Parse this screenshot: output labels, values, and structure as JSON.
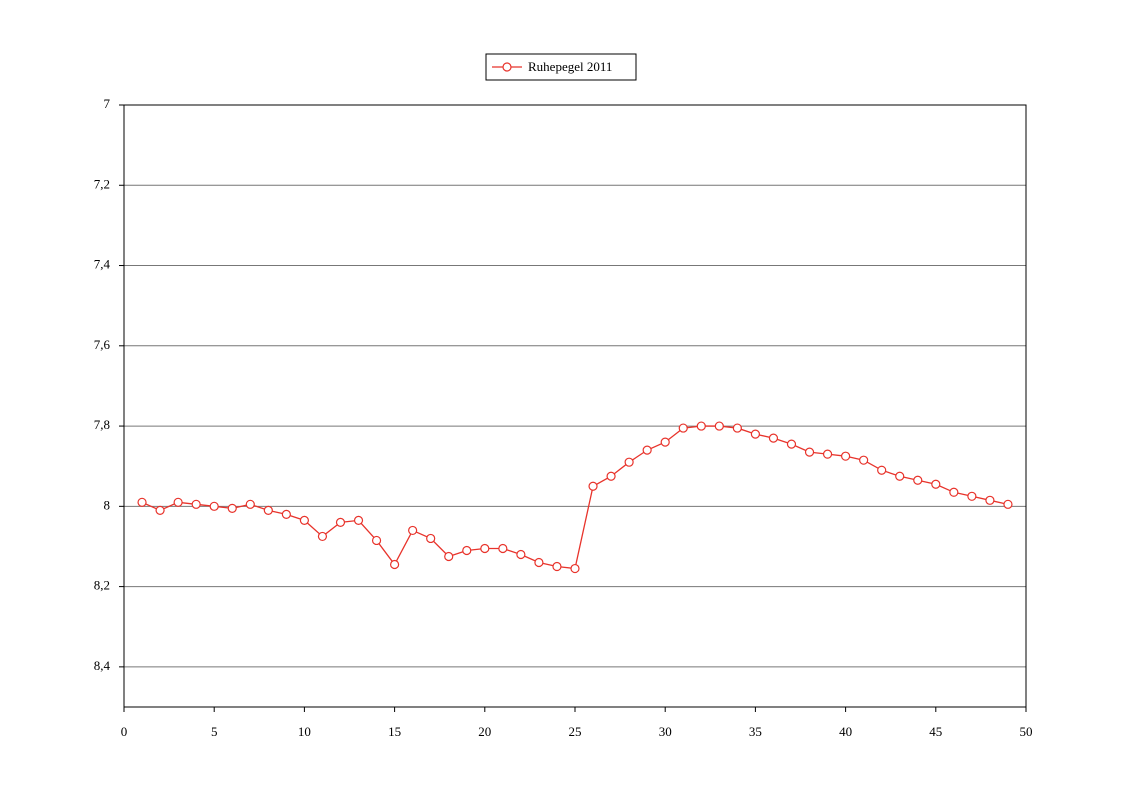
{
  "chart_data": {
    "type": "line",
    "x": [
      1,
      2,
      3,
      4,
      5,
      6,
      7,
      8,
      9,
      10,
      11,
      12,
      13,
      14,
      15,
      16,
      17,
      18,
      19,
      20,
      21,
      22,
      23,
      24,
      25,
      26,
      27,
      28,
      29,
      30,
      31,
      32,
      33,
      34,
      35,
      36,
      37,
      38,
      39,
      40,
      41,
      42,
      43,
      44,
      45,
      46,
      47,
      48,
      49
    ],
    "series": [
      {
        "name": "Ruhepegel 2011",
        "color": "#e8332b",
        "values": [
          7.99,
          8.01,
          7.99,
          7.995,
          8.0,
          8.005,
          7.995,
          8.01,
          8.02,
          8.035,
          8.075,
          8.04,
          8.035,
          8.085,
          8.145,
          8.06,
          8.08,
          8.125,
          8.11,
          8.105,
          8.105,
          8.12,
          8.14,
          8.15,
          8.155,
          7.95,
          7.925,
          7.89,
          7.86,
          7.84,
          7.805,
          7.8,
          7.8,
          7.805,
          7.82,
          7.83,
          7.845,
          7.865,
          7.87,
          7.875,
          7.885,
          7.91,
          7.925,
          7.935,
          7.945,
          7.965,
          7.975,
          7.985,
          7.995
        ]
      }
    ],
    "xlim": [
      0,
      50
    ],
    "xticks": [
      0,
      5,
      10,
      15,
      20,
      25,
      30,
      35,
      40,
      45,
      50
    ],
    "ylim": [
      7,
      8.5
    ],
    "y_reversed": true,
    "yticks": [
      7,
      {
        "value": 7.2,
        "label": "7,2"
      },
      {
        "value": 7.4,
        "label": "7,4"
      },
      {
        "value": 7.6,
        "label": "7,6"
      },
      {
        "value": 7.8,
        "label": "7,8"
      },
      8,
      {
        "value": 8.2,
        "label": "8,2"
      },
      {
        "value": 8.4,
        "label": "8,4"
      }
    ],
    "grid": true,
    "legend": "top"
  }
}
